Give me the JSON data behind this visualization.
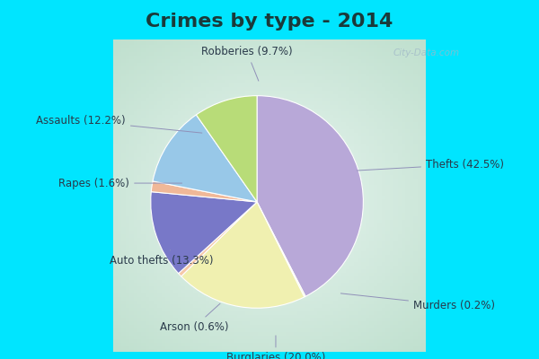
{
  "title": "Crimes by type - 2014",
  "title_fontsize": 16,
  "title_fontweight": "bold",
  "title_color": "#1a3a3a",
  "labels": [
    "Thefts",
    "Murders",
    "Burglaries",
    "Arson",
    "Auto thefts",
    "Rapes",
    "Assaults",
    "Robberies"
  ],
  "pct_labels": [
    "42.5%",
    "0.2%",
    "20.0%",
    "0.6%",
    "13.3%",
    "1.6%",
    "12.2%",
    "9.7%"
  ],
  "values": [
    42.5,
    0.2,
    20.0,
    0.6,
    13.3,
    1.6,
    12.2,
    9.7
  ],
  "colors": [
    "#b8a8d8",
    "#e8f0a0",
    "#f0f0b0",
    "#f5c8a8",
    "#7878c8",
    "#f0b898",
    "#98c8e8",
    "#b8dc78"
  ],
  "cyan_color": "#00e5ff",
  "bg_edge_color": "#b8dcc8",
  "bg_center_color": "#e8f5f0",
  "watermark": "City-Data.com",
  "startangle": 90,
  "label_color": "#2a3a4a",
  "label_fontsize": 8.5,
  "line_color": "#9090b8"
}
